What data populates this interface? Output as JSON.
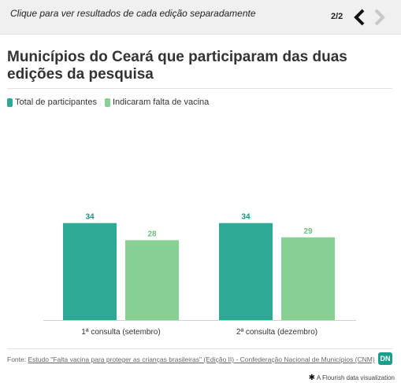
{
  "header": {
    "hint": "Clique para ver resultados de cada edição separadamente",
    "pager": "2/2",
    "prev_icon": "chevron-left-icon",
    "next_icon": "chevron-right-icon"
  },
  "legend": {
    "items": [
      {
        "label": "Total de participantes",
        "color": "#2ea996"
      },
      {
        "label": "Indicaram falta de vacina",
        "color": "#87d093"
      }
    ]
  },
  "source": {
    "prefix": "Fonte: ",
    "link": "Estudo \"Falta vacina para proteger as crianças brasileiras\" (Edição II) - Confederação Nacional de Municípios (CNM)"
  },
  "logo": "DN",
  "footer": "A Flourish data visualization",
  "chart_data": {
    "type": "bar",
    "title": "Municípios do Ceará que participaram das duas edições da pesquisa",
    "categories": [
      "1ª consulta (setembro)",
      "2ª consulta (dezembro)"
    ],
    "series": [
      {
        "name": "Total de participantes",
        "values": [
          34,
          34
        ],
        "color": "#2ea996"
      },
      {
        "name": "Indicaram falta de vacina",
        "values": [
          28,
          29
        ],
        "color": "#87d093"
      }
    ],
    "ylim": [
      0,
      70
    ],
    "grid": false,
    "legend_position": "top-left"
  }
}
